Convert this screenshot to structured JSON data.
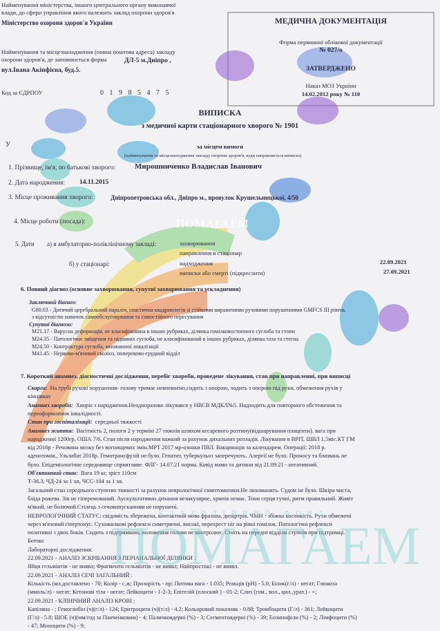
{
  "header": {
    "left": [
      "Найменування міністерства, іншого центрального органу виконавчої",
      "влади, до сфери управління якого належить заклад охорони здоров'я",
      "Міністерство охорони здоров'я України",
      "Найменування та місцезнаходження (повна поштова адреса) закладу",
      "охорони здоров'я, де заповнюється форма",
      "ДЛ-5 м.Дніпро ,",
      "вул.Івана Акінфієва, буд.5."
    ],
    "code_label": "Код за ЄДРПОУ",
    "code": "01985475",
    "right": {
      "title": "МЕДИЧНА ДОКУМЕНТАЦІЯ",
      "form": "Форма первинної облікової документації",
      "form_no": "№ 027/о",
      "approved": "ЗАТВЕРДЖЕНО",
      "order": "Наказ МОЗ України",
      "order_date": "14.02.2012 року  № 110"
    }
  },
  "title": {
    "main": "ВИПИСКА",
    "sub": "з медичної карти стаціонарного хворого № 1901"
  },
  "recipient": {
    "prefix": "У",
    "value": "за місцем вимоги",
    "caption": "(найменування та місцезнаходження закладу охорони здоров'я, куди направляється виписка)"
  },
  "fields": {
    "name_label": "1. Прізвище, ім'я, по батькові хворого:",
    "name": "Мирошниченко Владислав Іванович",
    "birth_label": "2. Дата народження:",
    "birth": "14.11.2015",
    "address_label": "3. Місце проживання хворого:",
    "address": "Дніпропетровська обл., Дніпро м., провулок Крушельницької, 4/50",
    "work_label": "4. Місце роботи (посада):",
    "dates_label": "5. Дати",
    "outpatient": "а) в амбулаторно-поліклінічному закладі:",
    "illness": "захворювання",
    "referral": "направлення в стаціонар",
    "inpatient": "б) у стаціонарі:",
    "admission": "надходження",
    "admission_date": "22.09.2021",
    "discharge": "виписки або смерті (підкреслити)",
    "discharge_date": "27.09.2021"
  },
  "diagnosis": {
    "heading": "6. Повний діагноз (основне захворювання, супутні захворювання та ускладнення)",
    "lines": [
      "Заключний діагноз:",
      "G80.03 - Дитячий церебральний параліч, спастична квадриплегія зі стійкими вираженими руховими порушеннями GMFCS III рівень",
      "з відсутністю навичок самообслуговування та самостійного пересування",
      "Супутні діагнози:",
      "M21.17 - Варусна деформація, не класифікована в інших рубриках, ділянка гомілковостопного суглоба та стопи",
      "M24.35 - Патологічне зміщення та підвивих суглоба, не класифікований в інших рубриках, ділянка таза та стегна",
      "M24.50 - Контрактура суглоба, множинної локалізації",
      "M41.45 - Нервово-м'язовий сколіоз, попереково-грудний відділ"
    ]
  },
  "history": {
    "heading": "7. Короткий анамнез, діагностичні дослідження, перебіг хвороби, проведене лікування, стан при направленні, при виписці",
    "lines": [
      [
        "Скарги:",
        "На грубі рухові порушення- голову тримає невпевнено,сидить з опорою, ходить з опорою під руки, обмеження рухів у"
      ],
      [
        "кінцівках"
      ],
      [
        "Анамнез хвороби:",
        "Хворіє з народження.Неодноразово лікувався у НВСВ МДКЛ№5. Надходить для повторного обстеження та"
      ],
      [
        "переоформлення інвалідності."
      ],
      [
        "Стан при госпіталізації:",
        "середньої тяжкості"
      ],
      [
        "Анамнез життя:",
        "Вагітність 2, пологи 2 у терміні 27 тижнів шляхом кесаревого розтину(відшарування плаценти). вага при"
      ],
      [
        "народженні 1200гр, ОША 7/6. Стан після народження важкий за рахунок дихальних розладів. Лікування в ВРІТ, ШВЛ 1.5міс.КТ ГМ"
      ],
      [
        "від 2016р - Речовина мозку без вогнищевих змін.МРТ 2017 мр-ознаки ПВЛ. Вакцинація за календарем. Операції: 2018 р."
      ],
      [
        "аденотомія., Ульзибат 2018р. Гемотрансфузій не було. Гепатит, туберкульоз заперечують. Алергії не було. Проносу та блювань не"
      ],
      [
        "було. Епідеміологічне середовище сприятливе. ФЛГ- 14.07.21 норма. Ковід мами та дитини від 21.09.21 - негативний."
      ],
      [
        "Об'єктивний стан:",
        "Вага 19 кг, зріст 110см"
      ],
      [
        "Т-36.3, ЧД-24 за 1 хв, ЧСС-104 за 1 хв."
      ],
      [
        "Загальний стан середнього ступеню тяжкості за рахунок неврологічної симптоматики.Не лихоманить. Судом не було. Шкіра чиста,"
      ],
      [
        "бліда рожева. Зів не гіперемований. Аускультативно дихання везикулярне, хрипів немає. Тони серця гучні, ритм правильний. Живіт"
      ],
      [
        "м'який, не болючий.Стілець з сечовипусканням не порушені."
      ],
      [
        "НЕВРОЛОГІЧНИЙ СТАТУС: свідомість збережена, контактний мова фразова, дизартрія. ЧМН - збіжна косоокість. Рухи обмежені"
      ],
      [
        "через м'язовий гіпертонус. Сухожилкові рефлекси симетричні, високі, перехрест ніг на рівні гомілок. Патологічні рефлекси"
      ],
      [
        "позитивні з двох боків. Сидить з підтримкою, положення голови не контролює. Стоїть на передні відділи ступнів при підтримці."
      ],
      [
        "Ботокс"
      ],
      [
        "Лабораторні дослідження:"
      ],
      [
        "22.09.2021 - АНАЛІЗ ЗСКРІБАННЯ З ПЕРІАНАЛЬНОЇ ДІЛЯНКИ :"
      ],
      [
        "Яйця гельмінтів - не виявл; Фрагменти гельмінтів - не виявл; Найпростіші - не виявл."
      ],
      [
        "22.09.2021 - АНАЛІЗ СЕЧІ ЗАГАЛЬНИЙ :"
      ],
      [
        "Кількість (мл.доставлено - 70; Колір - с.ж; Прозорість - пр; Питома вага - 1.035; Реакція (pH) - 5.0; Білок(г/л) - негат; Глюкоза"
      ],
      [
        "(ммоль/л) - негат; Кетонові тіла - негат; Лейкоцити - 1-2-3; Епітелій (плоский ) - 01-2; Слиз (гом., вол., цил.,урат.) - +;"
      ],
      [
        "22.09.2021 - КЛІНІЧНИЙ АНАЛІЗ КРОВІ :"
      ],
      [
        "Капіляна - ; Гемоглобін (ч)(г/л) - 124; Еритроцити (ч)(т/л) - 4.2; Кольоровий показник - 0.88; Тромбоцити (Г/л) - 361; Лейкоцити"
      ],
      [
        "(Г/л) - 5.8; ШОЕ (ч)(мм/год за Панченковим) - 4; Паличкоядерні (%) - 3; Сегментоядерні (%) - 39; Еозинофіли (%) - 2; Лімфоцити (%)"
      ],
      [
        "- 47; Моноцити (%) - 9;"
      ]
    ]
  },
  "watermark": {
    "small": "ПОМАГАЕМ",
    "fund": "БЛАГОДІЙНИЙ ФОНД",
    "big": "ПОМАГАЕМ"
  }
}
